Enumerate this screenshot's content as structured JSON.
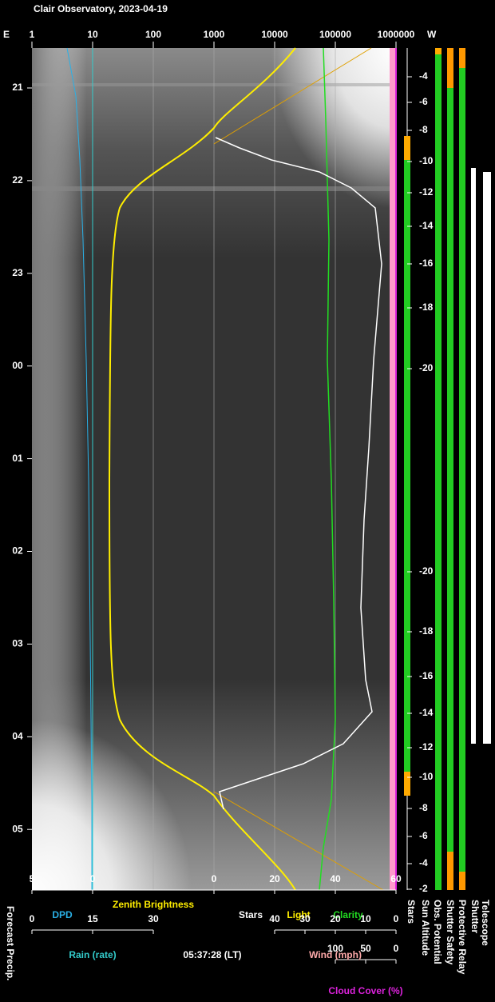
{
  "title": "Clair Observatory, 2023-04-19",
  "top_axis": {
    "left": "E",
    "right": "W",
    "scale": "log",
    "ticks": [
      1,
      10,
      100,
      1000,
      10000,
      100000,
      1000000
    ]
  },
  "time_ticks": [
    "21",
    "22",
    "23",
    "00",
    "01",
    "02",
    "03",
    "04",
    "05"
  ],
  "sun_altitude": {
    "evening_ticks": [
      -4,
      -6,
      -8,
      -10,
      -12,
      -14,
      -16,
      -18,
      -20
    ],
    "morning_ticks": [
      -20,
      -18,
      -16,
      -14,
      -12,
      -10,
      -8,
      -6,
      -4,
      -2
    ]
  },
  "bottom_axes": {
    "dpd_ticks": [
      5,
      0
    ],
    "dpd_label": "DPD",
    "brightness_label": "Zenith Brightness",
    "stars_ticks": [
      0,
      20,
      40,
      60
    ],
    "stars_label": "Stars",
    "light_label": "Light",
    "clarity_label": "Clarity",
    "rain_ticks": [
      0,
      15,
      30
    ],
    "rain_label": "Rain (rate)",
    "time": "05:37:28 (LT)",
    "wind_ticks": [
      40,
      30,
      20,
      10,
      0
    ],
    "wind_label": "Wind (mph)",
    "cloud_ticks": [
      100,
      50,
      0
    ],
    "cloud_label": "Cloud Cover (%)"
  },
  "side_labels": [
    "Forecast Precip.",
    "Stars",
    "Sun Altitude",
    "Obs. Potential",
    "Shutter Safety",
    "Protective Relay",
    "Shutter",
    "Telescope"
  ]
}
